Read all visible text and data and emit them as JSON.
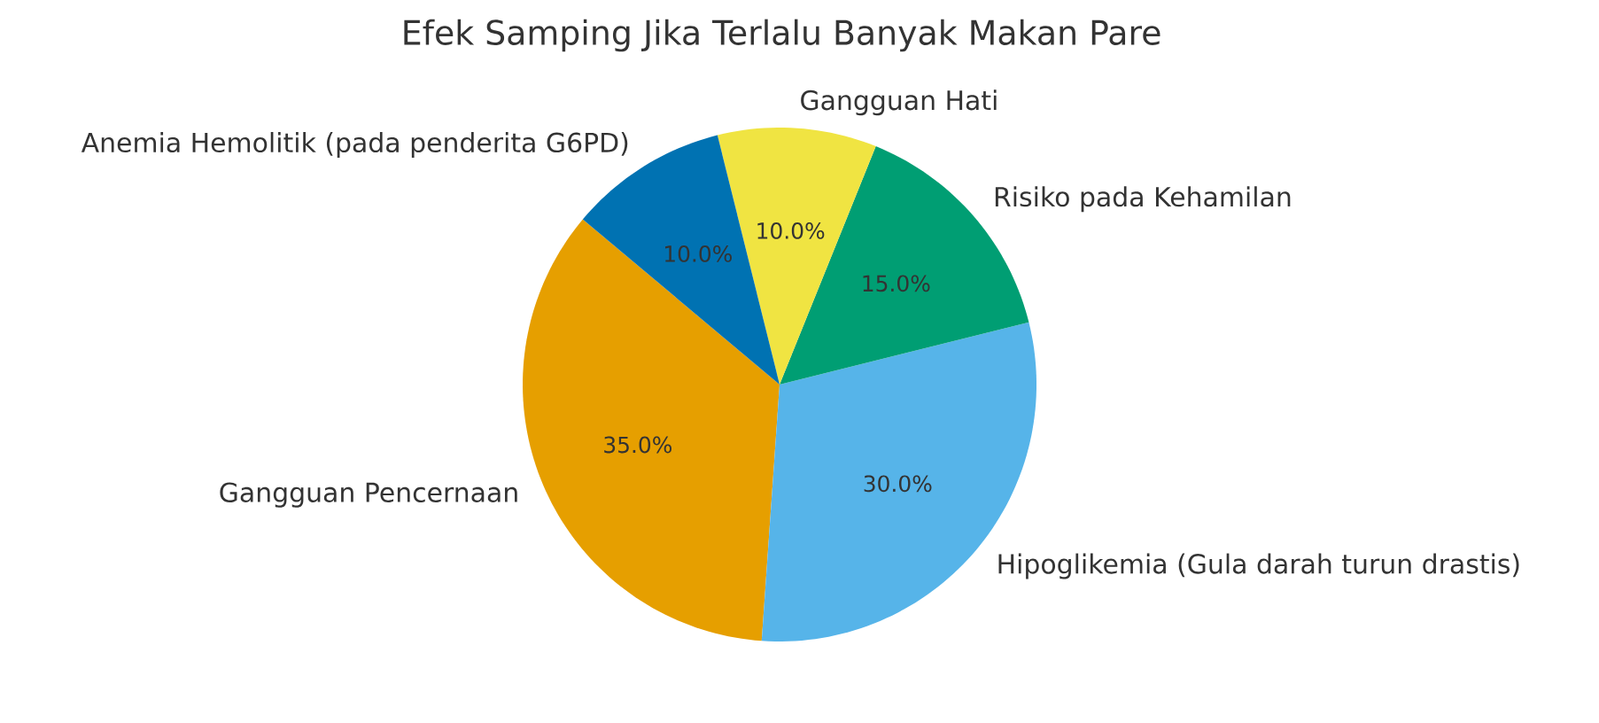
{
  "chart_data": {
    "type": "pie",
    "title": "Efek Samping Jika Terlalu Banyak Makan Pare",
    "categories": [
      "Gangguan Pencernaan",
      "Hipoglikemia (Gula darah turun drastis)",
      "Risiko pada Kehamilan",
      "Gangguan Hati",
      "Anemia Hemolitik (pada penderita G6PD)"
    ],
    "values": [
      35,
      30,
      15,
      10,
      10
    ],
    "colors": [
      "#e69f00",
      "#56b4e9",
      "#009e73",
      "#f0e442",
      "#0072b2"
    ],
    "value_labels": [
      "35.0%",
      "30.0%",
      "15.0%",
      "10.0%",
      "10.0%"
    ]
  }
}
